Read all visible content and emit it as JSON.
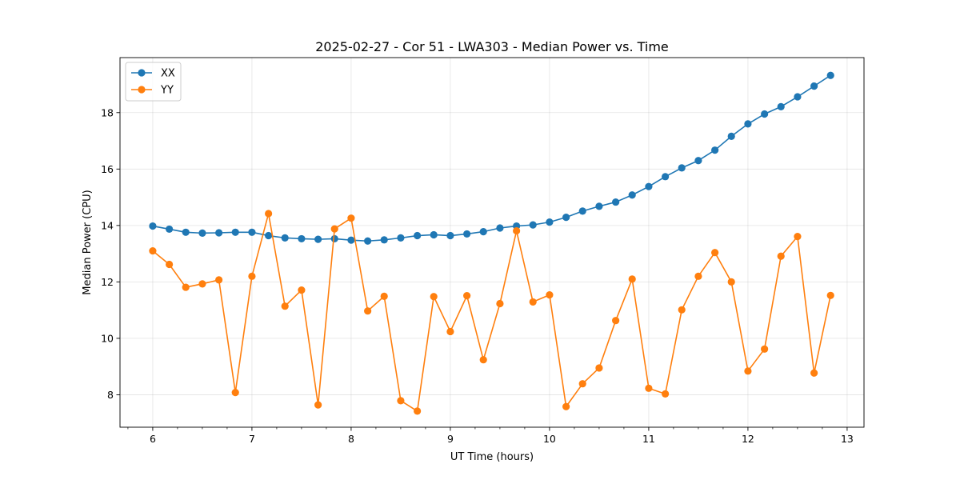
{
  "chart_data": {
    "type": "line",
    "title": "2025-02-27 - Cor 51 - LWA303 - Median Power vs. Time",
    "xlabel": "UT Time (hours)",
    "ylabel": "Median Power (CPU)",
    "xlim": [
      5.67,
      13.17
    ],
    "ylim": [
      6.85,
      19.95
    ],
    "xticks": [
      6,
      7,
      8,
      9,
      10,
      11,
      12,
      13
    ],
    "yticks": [
      8,
      10,
      12,
      14,
      16,
      18
    ],
    "grid": true,
    "legend_position": "top-left",
    "x": [
      6.0,
      6.167,
      6.333,
      6.5,
      6.667,
      6.833,
      7.0,
      7.167,
      7.333,
      7.5,
      7.667,
      7.833,
      8.0,
      8.167,
      8.333,
      8.5,
      8.667,
      8.833,
      9.0,
      9.167,
      9.333,
      9.5,
      9.667,
      9.833,
      10.0,
      10.167,
      10.333,
      10.5,
      10.667,
      10.833,
      11.0,
      11.167,
      11.333,
      11.5,
      11.667,
      11.833,
      12.0,
      12.167,
      12.333,
      12.5,
      12.667,
      12.833
    ],
    "series": [
      {
        "name": "XX",
        "color": "#1f77b4",
        "values": [
          13.98,
          13.87,
          13.76,
          13.73,
          13.74,
          13.76,
          13.76,
          13.64,
          13.56,
          13.53,
          13.51,
          13.53,
          13.48,
          13.45,
          13.49,
          13.56,
          13.64,
          13.67,
          13.64,
          13.7,
          13.78,
          13.91,
          13.98,
          14.02,
          14.12,
          14.29,
          14.51,
          14.68,
          14.83,
          15.08,
          15.38,
          15.73,
          16.04,
          16.3,
          16.67,
          17.16,
          17.6,
          17.95,
          18.21,
          18.56,
          18.94,
          19.32
        ]
      },
      {
        "name": "YY",
        "color": "#ff7f0e",
        "values": [
          13.1,
          12.62,
          11.81,
          11.93,
          12.07,
          8.08,
          12.2,
          14.42,
          11.14,
          11.71,
          7.64,
          13.88,
          14.26,
          10.97,
          11.49,
          7.79,
          7.42,
          11.48,
          10.24,
          11.51,
          9.24,
          11.23,
          13.81,
          11.29,
          11.54,
          7.58,
          8.39,
          8.95,
          10.63,
          12.1,
          8.23,
          8.03,
          11.01,
          12.2,
          13.04,
          12.0,
          8.84,
          9.62,
          12.91,
          13.61,
          8.77,
          11.52
        ]
      }
    ]
  }
}
